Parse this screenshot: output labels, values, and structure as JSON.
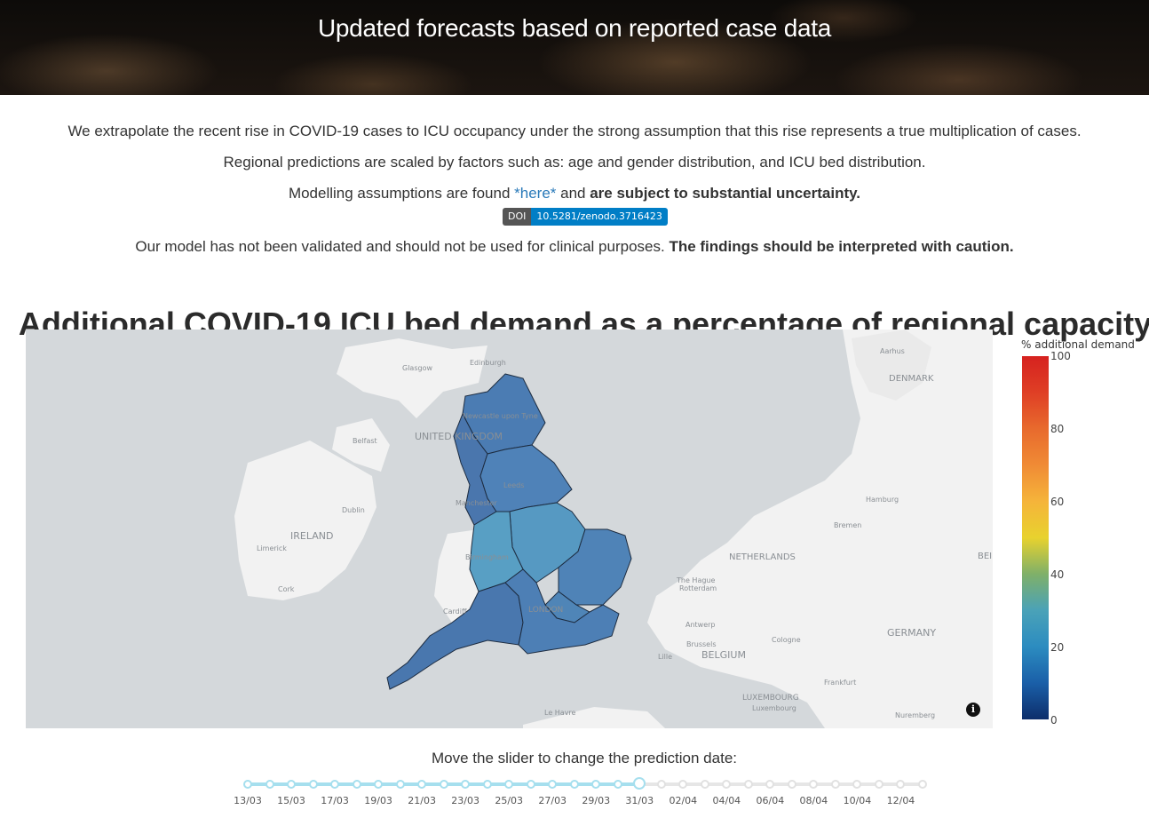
{
  "header": {
    "title": "Updated forecasts based on reported case data"
  },
  "intro": {
    "line1": "We extrapolate the recent rise in COVID-19 cases to ICU occupancy under the strong assumption that this rise represents a true multiplication of cases.",
    "line2": "Regional predictions are scaled by factors such as: age and gender distribution, and ICU bed distribution.",
    "line3_pre": "Modelling assumptions are found ",
    "line3_link": "*here*",
    "line3_mid": " and ",
    "line3_bold": "are subject to substantial uncertainty.",
    "doi_label": "DOI",
    "doi_value": "10.5281/zenodo.3716423",
    "line5_pre": "Our model has not been validated and should not be used for clinical purposes. ",
    "line5_bold": "The findings should be interpreted with caution."
  },
  "map": {
    "title": "Additional COVID-19 ICU bed demand as a percentage of regional capacity",
    "labels": {
      "glasgow": "Glasgow",
      "edinburgh": "Edinburgh",
      "newcastle": "Newcastle upon Tyne",
      "uk": "UNITED KINGDOM",
      "belfast": "Belfast",
      "leeds": "Leeds",
      "manchester": "Manchester",
      "dublin": "Dublin",
      "ireland": "IRELAND",
      "limerick": "Limerick",
      "cork": "Cork",
      "birmingham": "Birmingham",
      "cardiff": "Cardiff",
      "london": "LONDON",
      "le_havre": "Le Havre",
      "denmark": "DENMARK",
      "aarhus": "Aarhus",
      "hamburg": "Hamburg",
      "bremen": "Bremen",
      "netherlands": "NETHERLANDS",
      "hague": "The Hague",
      "rotterdam": "Rotterdam",
      "antwerp": "Antwerp",
      "brussels": "Brussels",
      "lille": "Lille",
      "belgium": "BELGIUM",
      "cologne": "Cologne",
      "germany": "GERMANY",
      "frankfurt": "Frankfurt",
      "luxembourg": "LUXEMBOURG",
      "luxembourg_city": "Luxembourg",
      "nuremberg": "Nuremberg",
      "be_partial": "BEI"
    },
    "info_icon": "info-icon",
    "colors": {
      "north_east": "#4b7cb3",
      "north_west": "#4a76ad",
      "yorkshire": "#4f82b8",
      "midlands_east": "#5699c2",
      "midlands_west": "#589fc4",
      "east_of_england": "#4f83b7",
      "london": "#4f85b7",
      "south_west": "#4977ae",
      "south_east": "#4d7fb5"
    }
  },
  "colorbar": {
    "title": "% additional demand",
    "ticks": [
      "100",
      "80",
      "60",
      "40",
      "20",
      "0"
    ]
  },
  "slider": {
    "label": "Move the slider to change the prediction date:",
    "tick_labels": [
      "13/03",
      "15/03",
      "17/03",
      "19/03",
      "21/03",
      "23/03",
      "25/03",
      "27/03",
      "29/03",
      "31/03",
      "02/04",
      "04/04",
      "06/04",
      "08/04",
      "10/04",
      "12/04"
    ],
    "tick_count": 32,
    "selected_index": 18,
    "selected_label": "31/03"
  }
}
